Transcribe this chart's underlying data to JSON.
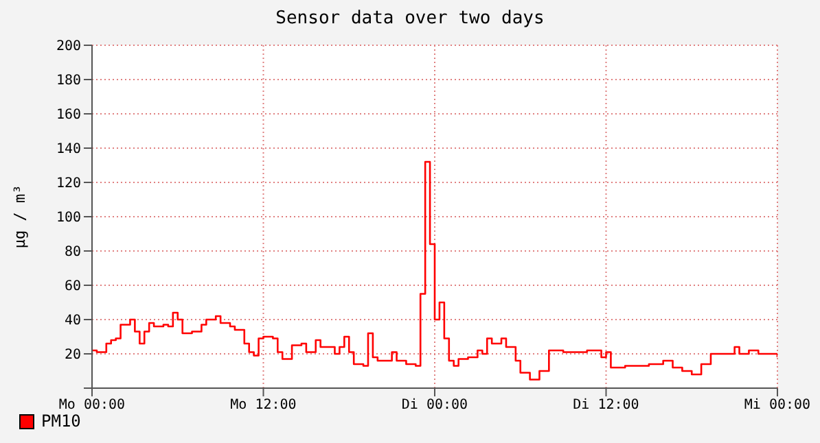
{
  "chart_data": {
    "type": "step",
    "title": "Sensor data over two days",
    "ylabel": "µg / m³",
    "categories": [
      "Mo 00:00",
      null,
      null,
      null,
      null,
      null,
      null,
      null,
      null,
      null,
      null,
      null,
      null,
      null,
      null,
      null,
      null,
      null,
      null,
      null,
      null,
      null,
      null,
      null,
      null,
      null,
      null,
      null,
      null,
      null,
      null,
      null,
      null,
      null,
      null,
      null,
      "Mo 12:00",
      null,
      null,
      null,
      null,
      null,
      null,
      null,
      null,
      null,
      null,
      null,
      null,
      null,
      null,
      null,
      null,
      null,
      null,
      null,
      null,
      null,
      null,
      null,
      null,
      null,
      null,
      null,
      null,
      null,
      null,
      null,
      null,
      null,
      null,
      null,
      "Di 00:00",
      null,
      null,
      null,
      null,
      null,
      null,
      null,
      null,
      null,
      null,
      null,
      null,
      null,
      null,
      null,
      null,
      null,
      null,
      null,
      null,
      null,
      null,
      null,
      null,
      null,
      null,
      null,
      null,
      null,
      null,
      null,
      null,
      null,
      null,
      null,
      "Di 12:00",
      null,
      null,
      null,
      null,
      null,
      null,
      null,
      null,
      null,
      null,
      null,
      null,
      null,
      null,
      null,
      null,
      null,
      null,
      null,
      null,
      null,
      null,
      null,
      null,
      null,
      null,
      null,
      null,
      null,
      null,
      null,
      null,
      null,
      null,
      null,
      "Mi 00:00"
    ],
    "series": [
      {
        "name": "PM10",
        "color": "#ff0000",
        "values": [
          22,
          21,
          21,
          26,
          28,
          29,
          37,
          37,
          40,
          33,
          26,
          33,
          38,
          36,
          36,
          37,
          36,
          44,
          40,
          32,
          32,
          33,
          33,
          37,
          40,
          40,
          42,
          38,
          38,
          36,
          34,
          34,
          26,
          21,
          19,
          29,
          30,
          30,
          29,
          21,
          17,
          17,
          25,
          25,
          26,
          21,
          21,
          28,
          24,
          24,
          24,
          20,
          24,
          30,
          21,
          14,
          14,
          13,
          32,
          18,
          16,
          16,
          16,
          21,
          16,
          16,
          14,
          14,
          13,
          55,
          132,
          84,
          40,
          50,
          29,
          16,
          13,
          17,
          17,
          18,
          18,
          22,
          20,
          29,
          26,
          26,
          29,
          24,
          24,
          16,
          9,
          9,
          5,
          5,
          10,
          10,
          22,
          22,
          22,
          21,
          21,
          21,
          21,
          21,
          22,
          22,
          22,
          18,
          21,
          12,
          12,
          12,
          13,
          13,
          13,
          13,
          13,
          14,
          14,
          14,
          16,
          16,
          12,
          12,
          10,
          10,
          8,
          8,
          14,
          14,
          20,
          20,
          20,
          20,
          20,
          24,
          20,
          20,
          22,
          22,
          20,
          20,
          20,
          20,
          18
        ]
      }
    ],
    "ylim": [
      0,
      200
    ],
    "yticks": [
      {
        "value": 0,
        "label": null
      },
      20,
      40,
      60,
      80,
      100,
      120,
      140,
      160,
      180,
      200
    ],
    "grid": true,
    "legend": "bottom left",
    "line_style": "solid",
    "marker": "none"
  }
}
